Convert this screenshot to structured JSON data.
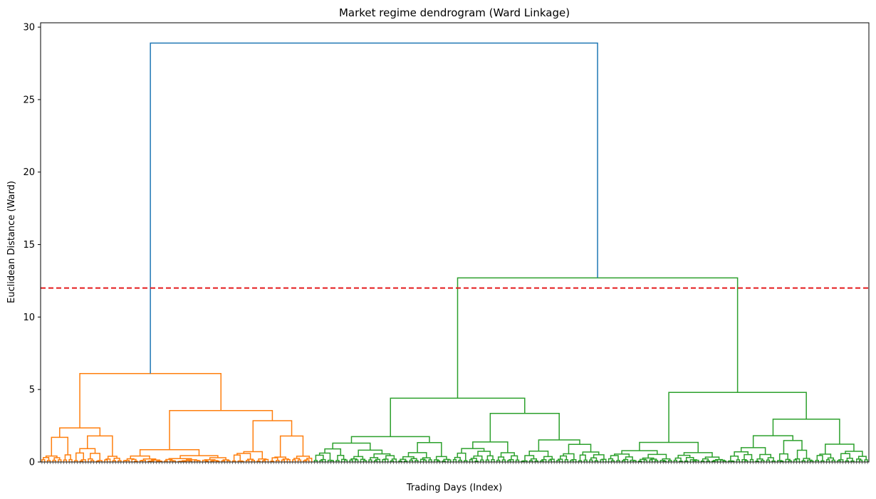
{
  "chart_data": {
    "type": "dendrogram",
    "title": "Market regime dendrogram (Ward Linkage)",
    "xlabel": "Trading Days (Index)",
    "ylabel": "Euclidean Distance (Ward)",
    "ylim": [
      0,
      30.3
    ],
    "yticks": [
      0,
      5,
      10,
      15,
      20,
      25,
      30
    ],
    "grid": false,
    "threshold": {
      "value": 12,
      "color": "#e41a1c",
      "style": "dashed"
    },
    "colors": {
      "root": "#1f77b4",
      "cluster_1": "#ff7f0e",
      "cluster_2": "#2ca02c"
    },
    "leaf_count": 304,
    "clusters": [
      {
        "name": "cluster_1",
        "color": "#ff7f0e",
        "leaf_count": 100,
        "merge_height": 6.1,
        "subclusters": [
          {
            "leaf_count": 30,
            "merge_height": 2.35,
            "children_heights": [
              1.7,
              1.8
            ]
          },
          {
            "leaf_count": 70,
            "merge_height": 3.55,
            "children_heights": [
              0.85,
              2.85
            ]
          }
        ]
      },
      {
        "name": "cluster_2",
        "color": "#2ca02c",
        "leaf_count": 204,
        "merge_height": 12.7,
        "subclusters": [
          {
            "leaf_count": 108,
            "merge_height": 4.4,
            "children_heights": [
              1.75,
              3.35
            ]
          },
          {
            "leaf_count": 96,
            "merge_height": 4.8,
            "children_heights": [
              1.35,
              2.95
            ]
          }
        ]
      }
    ],
    "root_merge_height": 28.9
  }
}
